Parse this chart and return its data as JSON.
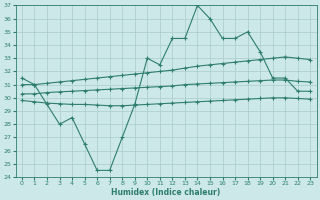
{
  "x": [
    0,
    1,
    2,
    3,
    4,
    5,
    6,
    7,
    8,
    9,
    10,
    11,
    12,
    13,
    14,
    15,
    16,
    17,
    18,
    19,
    20,
    21,
    22,
    23
  ],
  "line_jagged": [
    31.5,
    31.0,
    29.5,
    28.0,
    28.5,
    26.5,
    24.5,
    24.5,
    27.0,
    29.5,
    33.0,
    32.5,
    34.5,
    34.5,
    37.0,
    36.0,
    34.5,
    34.5,
    35.0,
    33.5,
    31.5,
    31.5,
    30.5,
    30.5
  ],
  "line_top": [
    31.0,
    31.0,
    31.1,
    31.2,
    31.3,
    31.4,
    31.5,
    31.6,
    31.7,
    31.8,
    31.9,
    32.0,
    32.1,
    32.25,
    32.4,
    32.5,
    32.6,
    32.7,
    32.8,
    32.9,
    33.0,
    33.1,
    33.0,
    32.9
  ],
  "line_mid": [
    30.3,
    30.3,
    30.4,
    30.45,
    30.5,
    30.55,
    30.6,
    30.65,
    30.7,
    30.75,
    30.8,
    30.85,
    30.9,
    31.0,
    31.05,
    31.1,
    31.15,
    31.2,
    31.25,
    31.3,
    31.35,
    31.35,
    31.25,
    31.2
  ],
  "line_bot": [
    29.8,
    29.7,
    29.6,
    29.55,
    29.5,
    29.5,
    29.45,
    29.4,
    29.4,
    29.45,
    29.5,
    29.55,
    29.6,
    29.65,
    29.7,
    29.75,
    29.8,
    29.85,
    29.9,
    29.95,
    30.0,
    30.0,
    29.95,
    29.9
  ],
  "color": "#2e7d6e",
  "bg_color": "#cce8e8",
  "grid_color": "#aacccc",
  "xlabel": "Humidex (Indice chaleur)",
  "ylim": [
    24,
    37
  ],
  "xlim": [
    -0.5,
    23.5
  ],
  "yticks": [
    24,
    25,
    26,
    27,
    28,
    29,
    30,
    31,
    32,
    33,
    34,
    35,
    36,
    37
  ],
  "xticks": [
    0,
    1,
    2,
    3,
    4,
    5,
    6,
    7,
    8,
    9,
    10,
    11,
    12,
    13,
    14,
    15,
    16,
    17,
    18,
    19,
    20,
    21,
    22,
    23
  ]
}
